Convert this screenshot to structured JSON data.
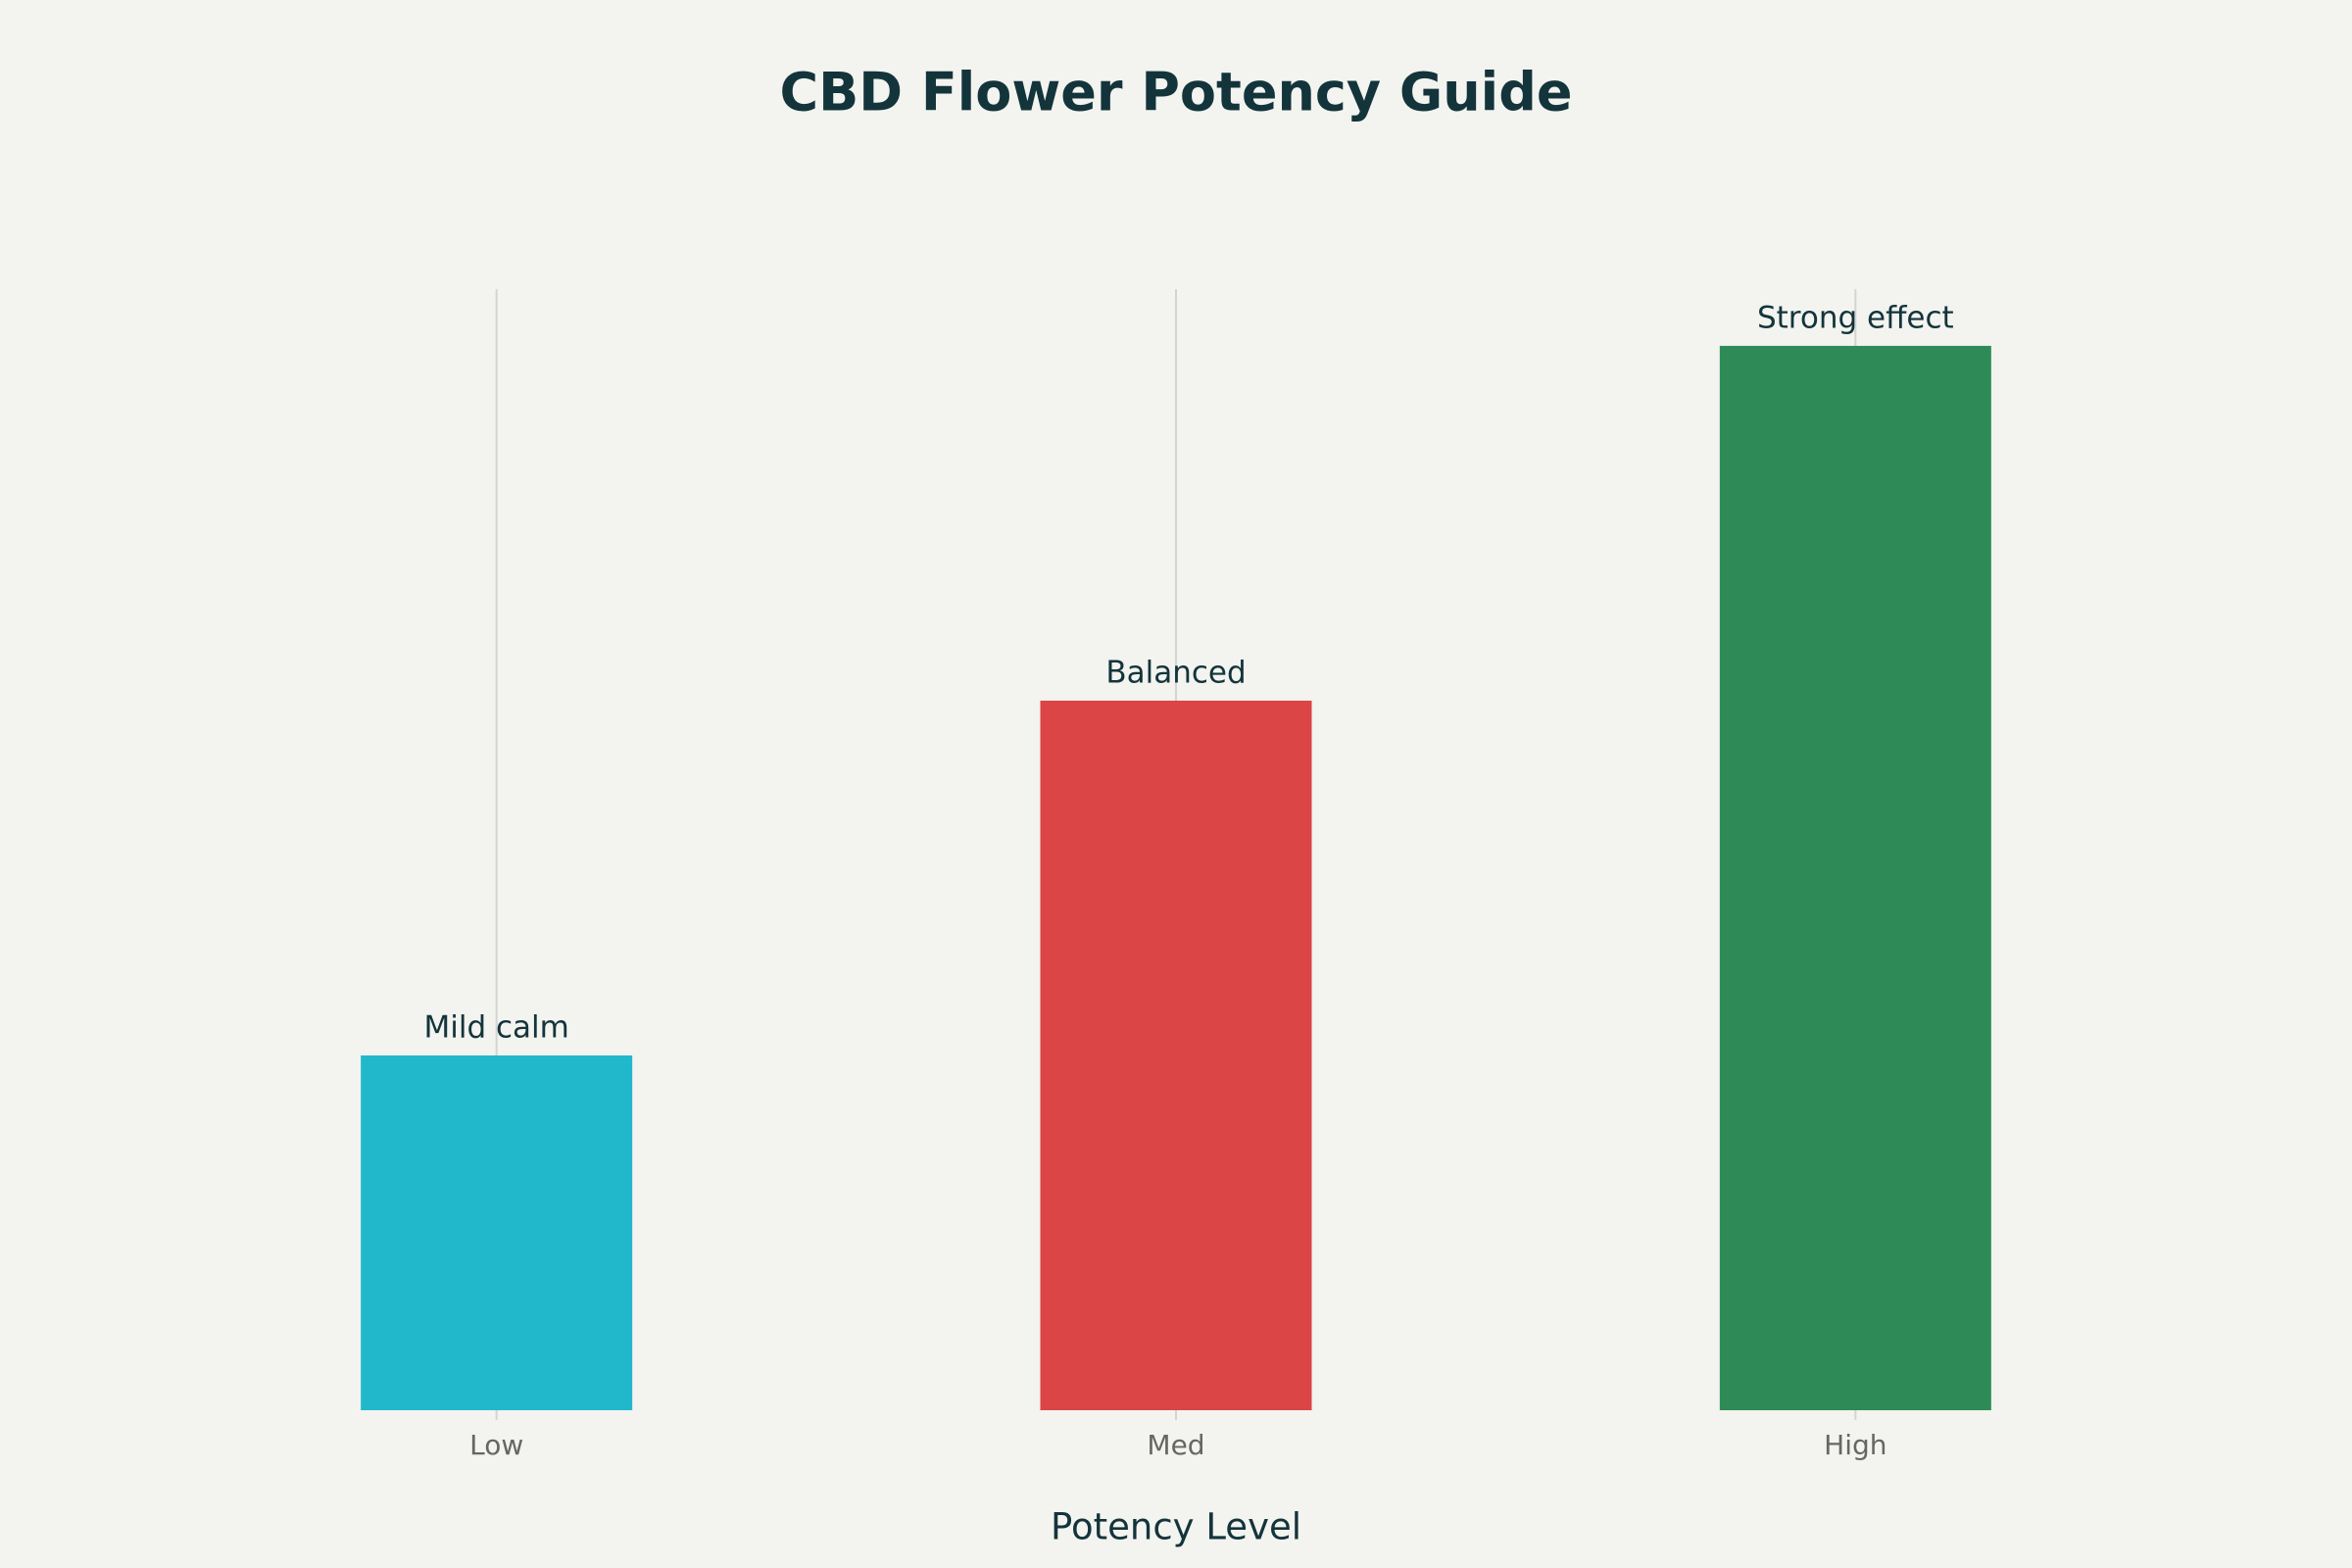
{
  "chart_data": {
    "type": "bar",
    "title": "CBD Flower Potency Guide",
    "x_label": "Potency Level",
    "categories": [
      "Low",
      "Med",
      "High"
    ],
    "values": [
      1,
      2,
      3
    ],
    "bar_labels": [
      "Mild calm",
      "Balanced",
      "Strong effect"
    ],
    "colors": [
      "#21b8cb",
      "#db4545",
      "#2e8b57"
    ],
    "ylim": [
      0,
      3.16
    ],
    "grid": true
  }
}
